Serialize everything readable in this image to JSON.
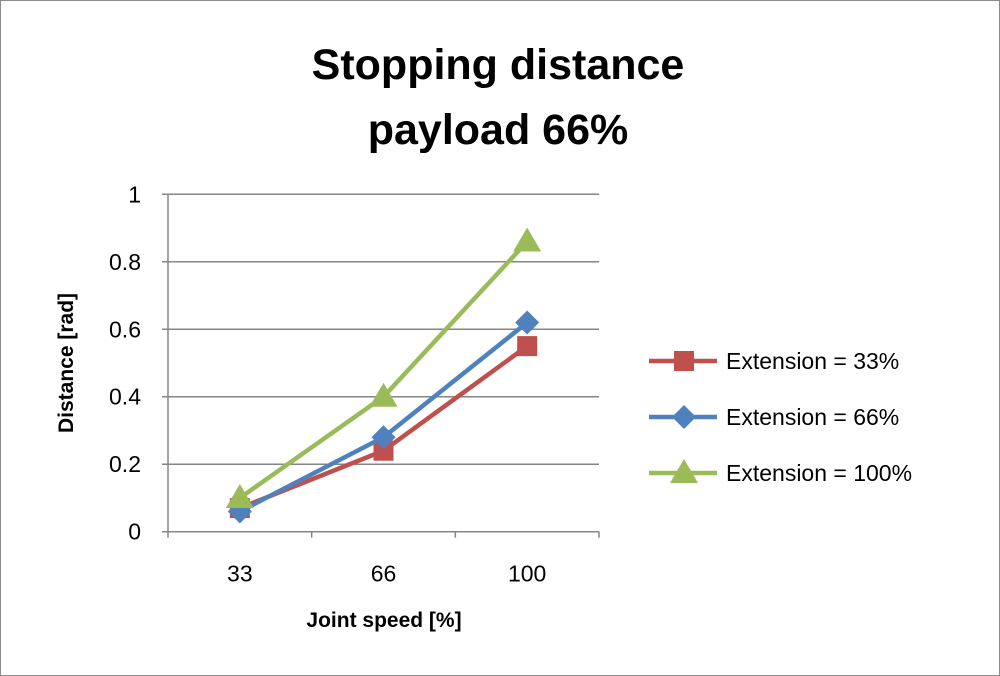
{
  "chart_data": {
    "type": "line",
    "title": "Stopping distance",
    "subtitle": "payload 66%",
    "xlabel": "Joint speed [%]",
    "ylabel": "Distance [rad]",
    "categories": [
      "33",
      "66",
      "100"
    ],
    "ylim": [
      0,
      1
    ],
    "yticks": [
      "0",
      "0.2",
      "0.4",
      "0.6",
      "0.8",
      "1"
    ],
    "grid": true,
    "legend_position": "right",
    "series": [
      {
        "name": "Extension = 33%",
        "values": [
          0.07,
          0.24,
          0.55
        ],
        "color": "#c0504d",
        "marker": "square"
      },
      {
        "name": "Extension = 66%",
        "values": [
          0.06,
          0.28,
          0.62
        ],
        "color": "#4f81bd",
        "marker": "diamond"
      },
      {
        "name": "Extension = 100%",
        "values": [
          0.1,
          0.4,
          0.86
        ],
        "color": "#9bbb59",
        "marker": "triangle"
      }
    ]
  }
}
